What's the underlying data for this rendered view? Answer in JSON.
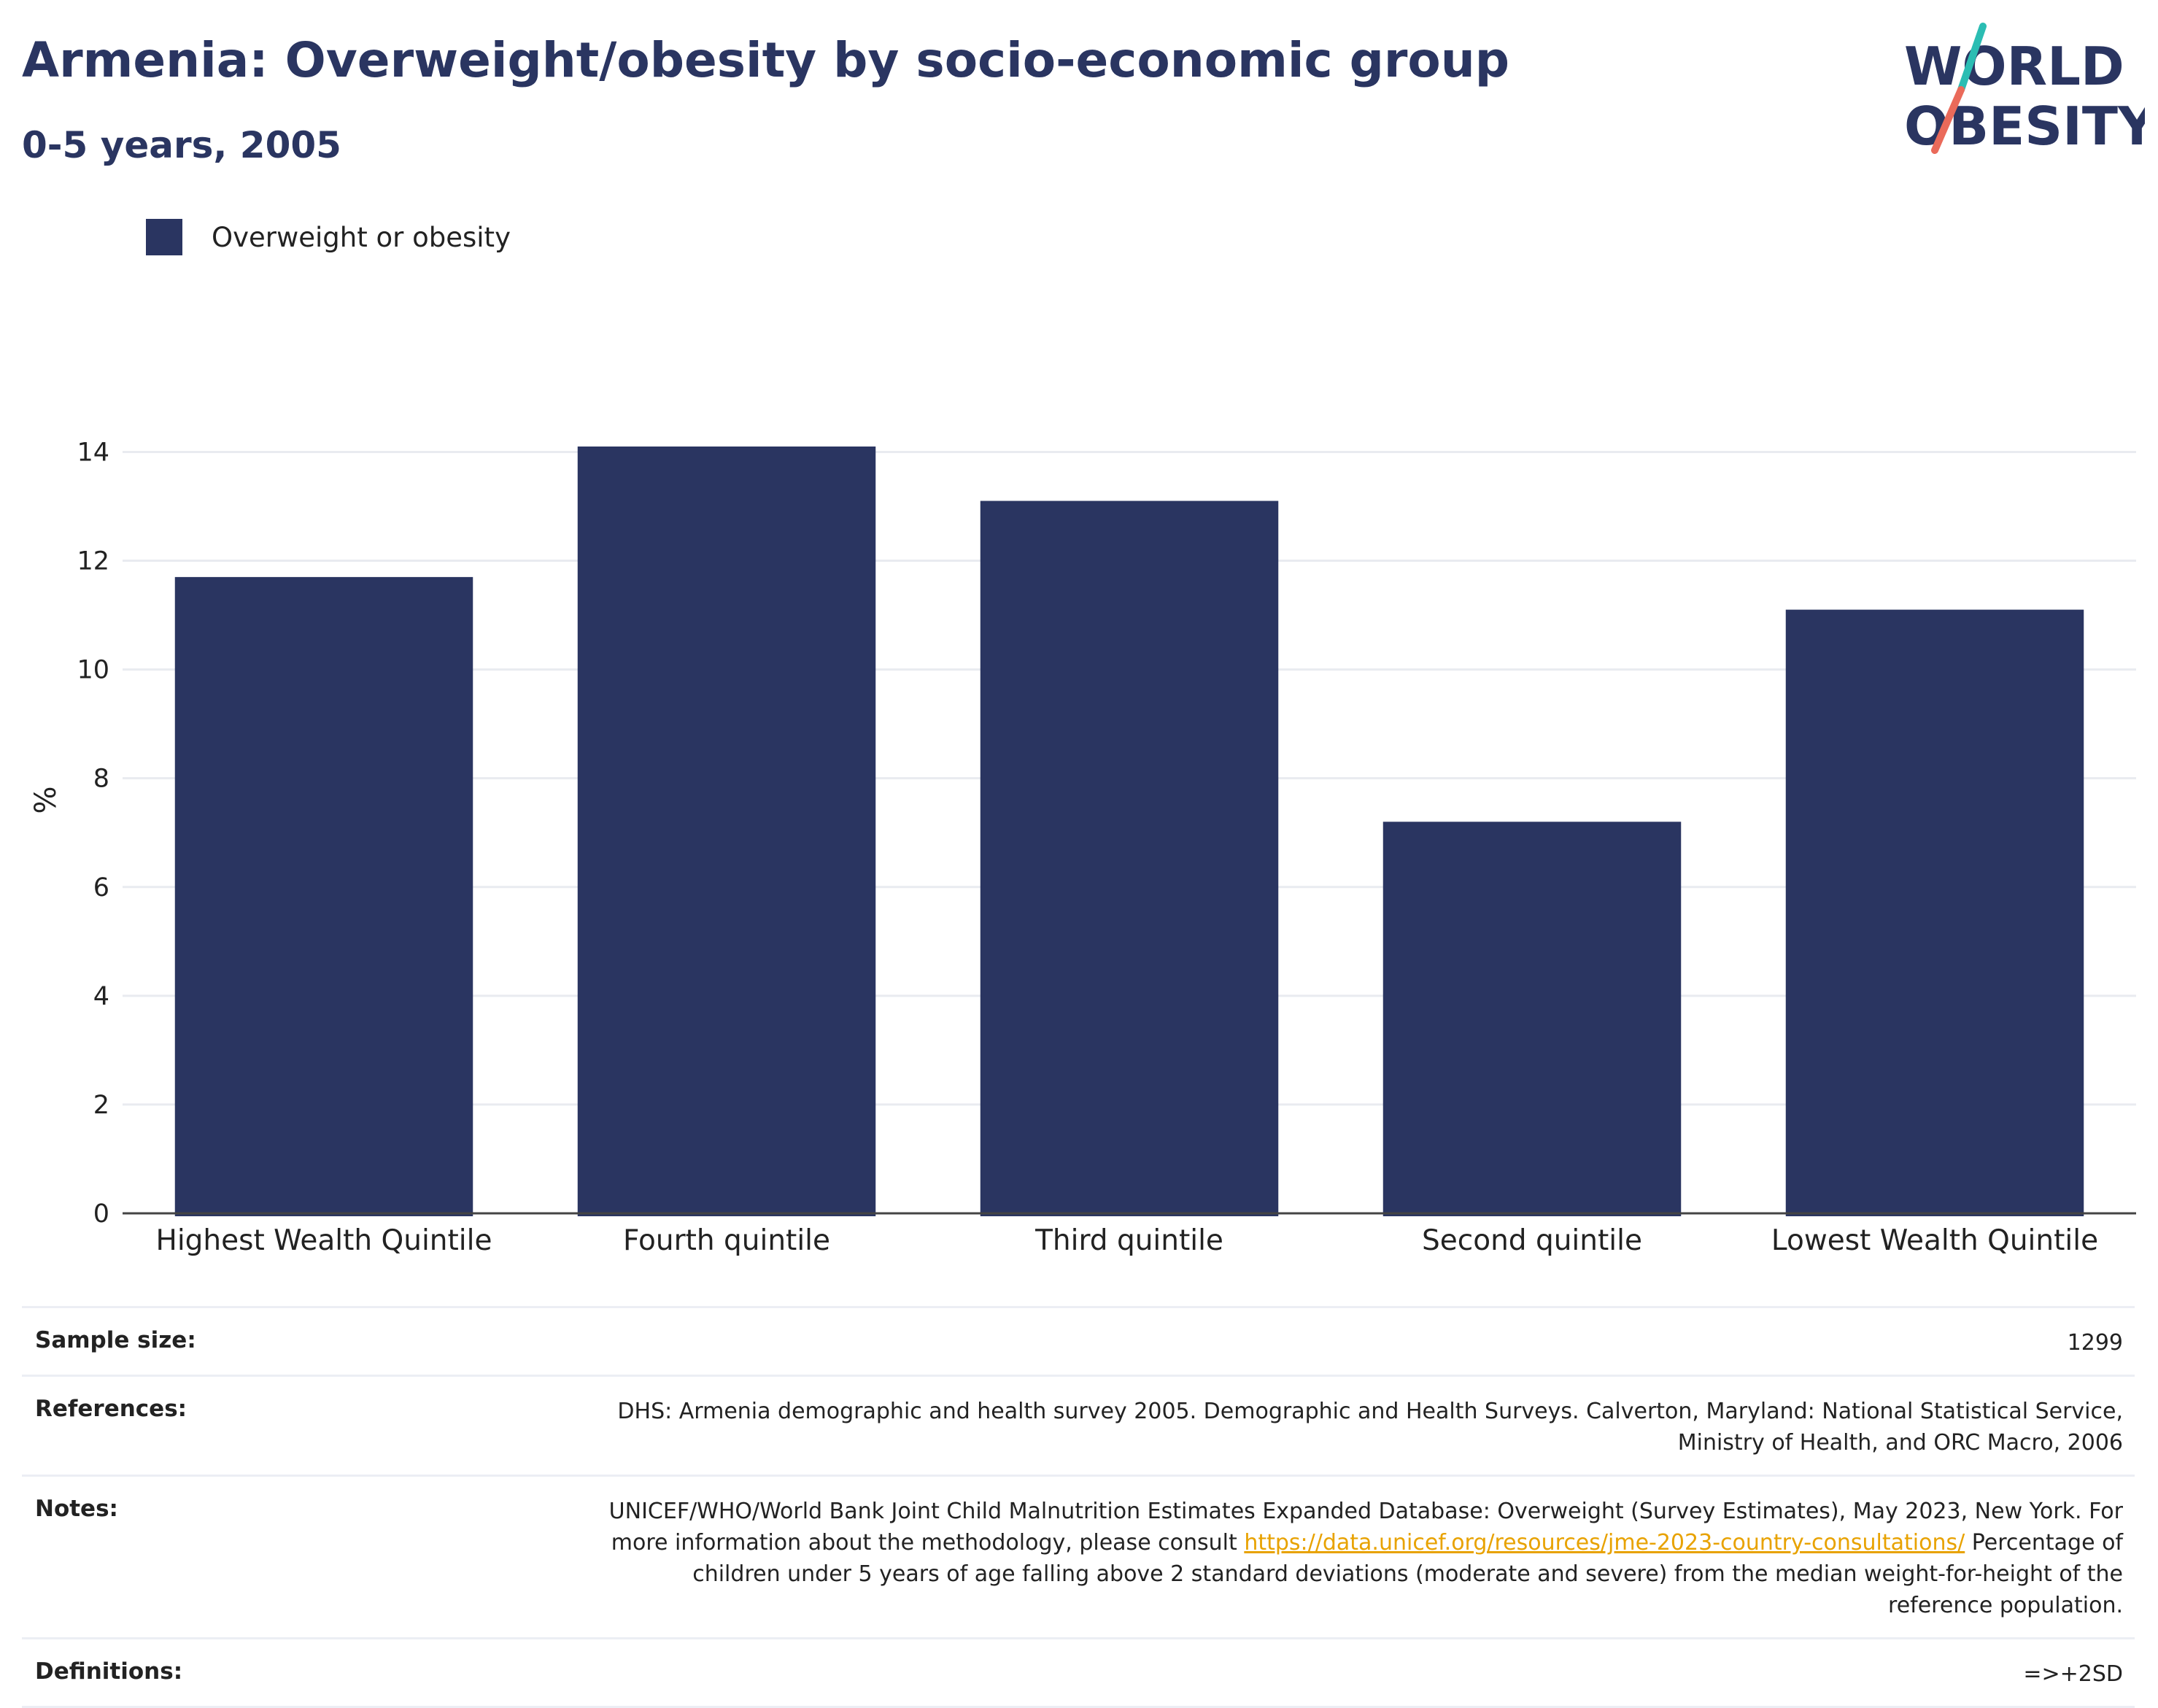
{
  "header": {
    "title": "Armenia: Overweight/obesity by socio-economic group",
    "subtitle": "0-5 years, 2005"
  },
  "logo": {
    "line1": "WORLD",
    "line2": "OBESITY",
    "colors": {
      "text": "#2a3561",
      "slash_teal": "#2bbdb3",
      "slash_coral": "#ea6a5a"
    }
  },
  "legend": {
    "label": "Overweight or obesity",
    "color": "#2a3561"
  },
  "chart_data": {
    "type": "bar",
    "categories": [
      "Highest Wealth Quintile",
      "Fourth quintile",
      "Third quintile",
      "Second quintile",
      "Lowest Wealth Quintile"
    ],
    "series": [
      {
        "name": "Overweight or obesity",
        "values": [
          11.7,
          14.1,
          13.1,
          7.2,
          11.1
        ],
        "color": "#2a3561"
      }
    ],
    "ylabel": "%",
    "yticks": [
      0,
      2,
      4,
      6,
      8,
      10,
      12,
      14
    ],
    "ylim": [
      0,
      15.2
    ],
    "grid": true,
    "legend_position": "top-left"
  },
  "info": {
    "sample_size_label": "Sample size:",
    "sample_size_value": "1299",
    "references_label": "References:",
    "references_value": "DHS: Armenia demographic and health survey 2005. Demographic and Health Surveys. Calverton, Maryland: National Statistical Service, Ministry of Health, and ORC Macro, 2006",
    "notes_label": "Notes:",
    "notes_text_1": "UNICEF/WHO/World Bank Joint Child Malnutrition Estimates Expanded Database: Overweight (Survey Estimates), May 2023, New York. For more information about the methodology, please consult ",
    "notes_link": "https://data.unicef.org/resources/jme-2023-country-consultations/",
    "notes_text_2": " Percentage of children under 5 years of age falling above 2 standard deviations (moderate and severe) from the median weight-for-height of the reference population.",
    "definitions_label": "Definitions:",
    "definitions_value": "=>+2SD"
  }
}
